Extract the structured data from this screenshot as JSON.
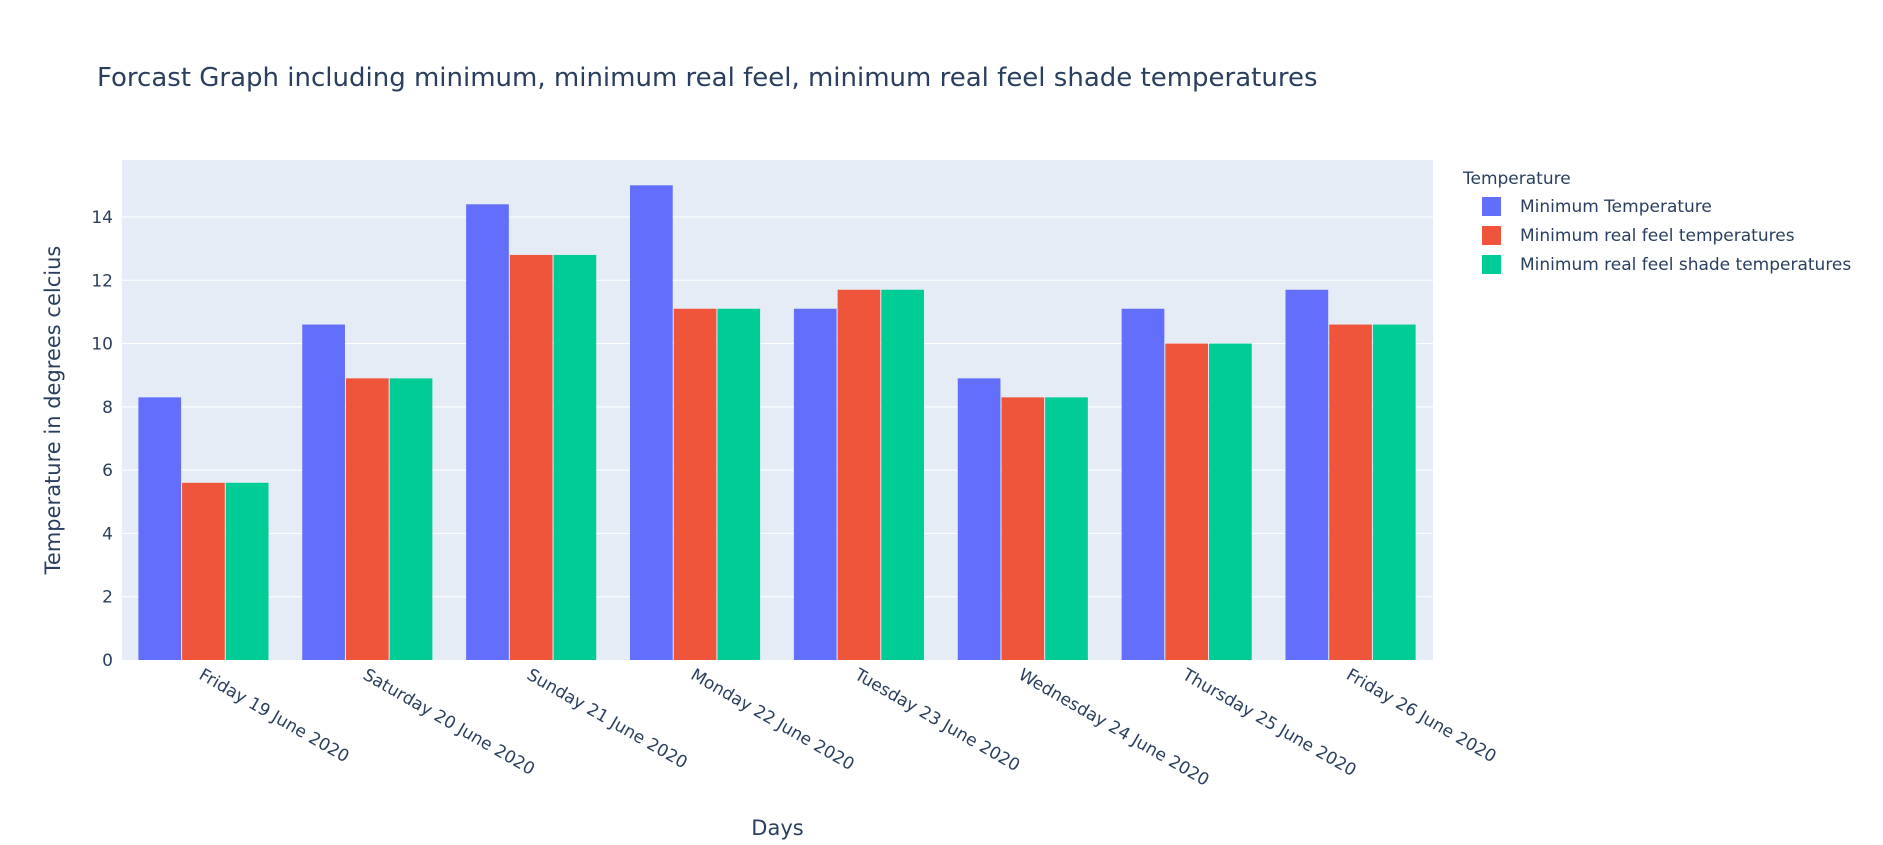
{
  "chart_data": {
    "type": "bar",
    "title": "Forcast Graph including minimum, minimum real feel, minimum real feel shade temperatures",
    "xlabel": "Days",
    "ylabel": "Temperature in degrees celcius",
    "categories": [
      "Friday 19 June 2020",
      "Saturday 20 June 2020",
      "Sunday 21 June 2020",
      "Monday 22 June 2020",
      "Tuesday 23 June 2020",
      "Wednesday 24 June 2020",
      "Thursday 25 June 2020",
      "Friday 26 June 2020"
    ],
    "series": [
      {
        "name": "Minimum Temperature",
        "color": "#636efa",
        "values": [
          8.3,
          10.6,
          14.4,
          15.0,
          11.1,
          8.9,
          11.1,
          11.7
        ]
      },
      {
        "name": "Minimum real feel temperatures",
        "color": "#ef553b",
        "values": [
          5.6,
          8.9,
          12.8,
          11.1,
          11.7,
          8.3,
          10.0,
          10.6
        ]
      },
      {
        "name": "Minimum real feel shade temperatures",
        "color": "#00cc96",
        "values": [
          5.6,
          8.9,
          12.8,
          11.1,
          11.7,
          8.3,
          10.0,
          10.6
        ]
      }
    ],
    "ylim": [
      0,
      15.8
    ],
    "yticks": [
      0,
      2,
      4,
      6,
      8,
      10,
      12,
      14
    ],
    "grid": true,
    "legend": {
      "title": "Temperature",
      "placement": "right"
    },
    "colors": {
      "plot_background": "#e5ecf6",
      "grid": "#ffffff",
      "text": "#2a3f5f"
    }
  }
}
